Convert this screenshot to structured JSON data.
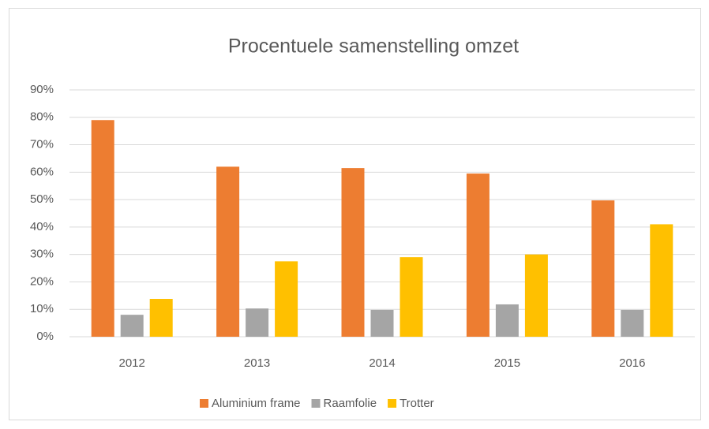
{
  "chart_data": {
    "type": "bar",
    "title": "Procentuele samenstelling omzet",
    "categories": [
      "2012",
      "2013",
      "2014",
      "2015",
      "2016"
    ],
    "series": [
      {
        "name": "Aluminium frame",
        "color": "#ed7d31",
        "values": [
          79,
          62,
          61.5,
          59.5,
          49.7
        ]
      },
      {
        "name": "Raamfolie",
        "color": "#a5a5a5",
        "values": [
          8,
          10.3,
          9.8,
          11.8,
          9.8
        ]
      },
      {
        "name": "Trotter",
        "color": "#ffc000",
        "values": [
          13.8,
          27.5,
          29,
          30,
          41
        ]
      }
    ],
    "ylim": [
      0,
      90
    ],
    "yticks": [
      {
        "value": 0,
        "label": "0%"
      },
      {
        "value": 10,
        "label": "10%"
      },
      {
        "value": 20,
        "label": "20%"
      },
      {
        "value": 30,
        "label": "30%"
      },
      {
        "value": 40,
        "label": "40%"
      },
      {
        "value": 50,
        "label": "50%"
      },
      {
        "value": 60,
        "label": "60%"
      },
      {
        "value": 70,
        "label": "70%"
      },
      {
        "value": 80,
        "label": "80%"
      },
      {
        "value": 90,
        "label": "90%"
      }
    ],
    "grid": true,
    "legend": "bottom"
  }
}
